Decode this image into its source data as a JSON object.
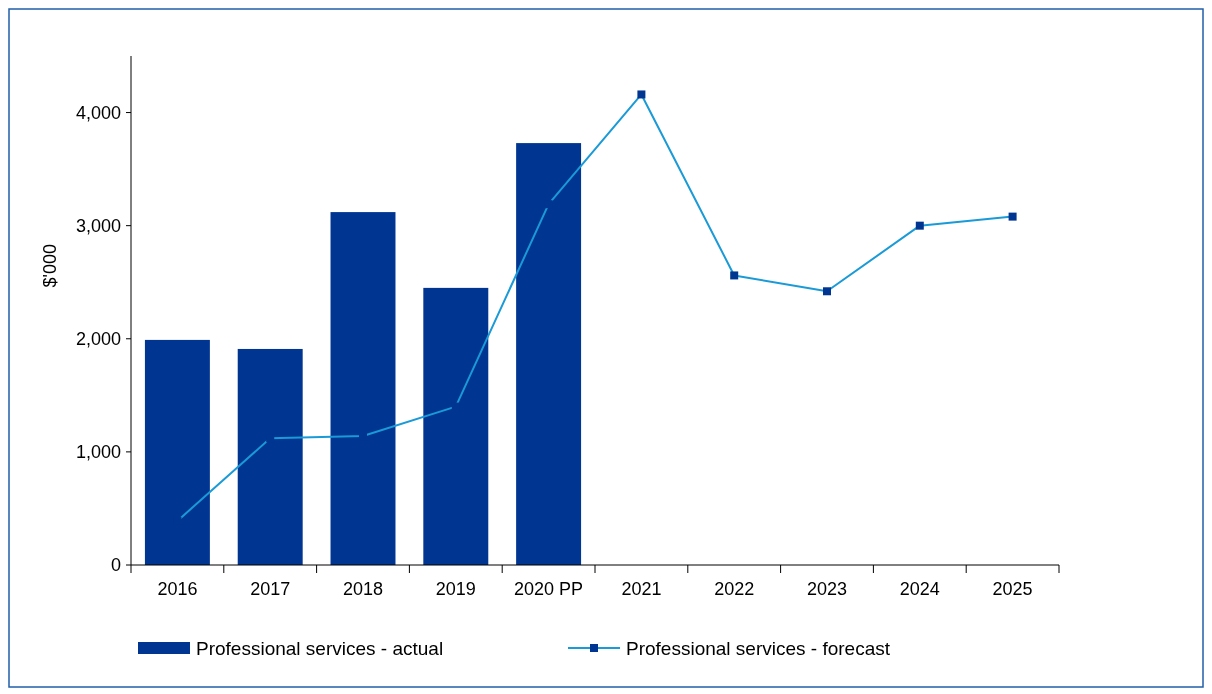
{
  "chart_data": {
    "type": "bar",
    "ylabel": "$'000",
    "categories": [
      "2016",
      "2017",
      "2018",
      "2019",
      "2020 PP",
      "2021",
      "2022",
      "2023",
      "2024",
      "2025"
    ],
    "series": [
      {
        "name": "Professional services - actual",
        "color": "#003591",
        "values": [
          1990,
          1910,
          3120,
          2450,
          3730,
          null,
          null,
          null,
          null,
          null
        ]
      },
      {
        "name": "Professional services - forecast",
        "type": "line",
        "color": "#1a9ad6",
        "values": [
          390,
          1120,
          1140,
          1400,
          3190,
          4160,
          2560,
          2420,
          3000,
          3080
        ],
        "marker": "square"
      }
    ],
    "ylim": [
      0,
      4500
    ],
    "yticks": [
      {
        "value": 0,
        "label": "0"
      },
      {
        "value": 1000,
        "label": "1,000"
      },
      {
        "value": 2000,
        "label": "2,000"
      },
      {
        "value": 3000,
        "label": "3,000"
      },
      {
        "value": 4000,
        "label": "4,000"
      }
    ],
    "grid": false,
    "legend": "bottom"
  }
}
